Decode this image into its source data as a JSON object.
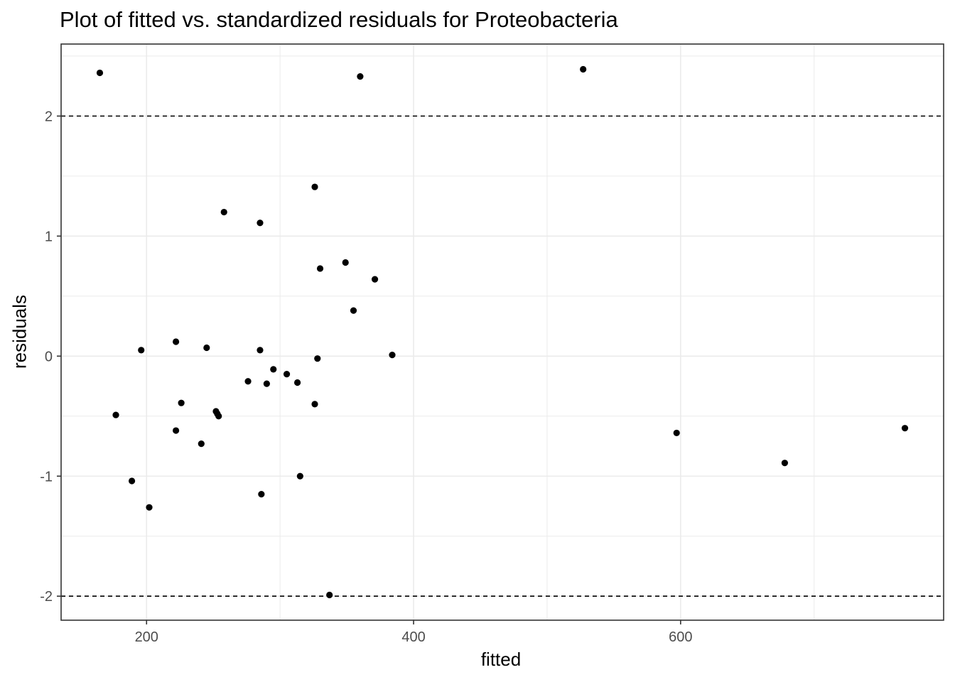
{
  "chart_data": {
    "type": "scatter",
    "title": "Plot of fitted vs. standardized residuals for Proteobacteria",
    "xlabel": "fitted",
    "ylabel": "residuals",
    "xlim": [
      136,
      797
    ],
    "ylim": [
      -2.2,
      2.6
    ],
    "x_ticks": [
      200,
      400,
      600
    ],
    "x_tick_labels": [
      "200",
      "400",
      "600"
    ],
    "y_ticks": [
      -2,
      -1,
      0,
      1,
      2
    ],
    "y_tick_labels": [
      "-2",
      "-1",
      "0",
      "1",
      "2"
    ],
    "grid": true,
    "reference_lines": [
      2,
      -2
    ],
    "points": [
      {
        "x": 165,
        "y": 2.36
      },
      {
        "x": 177,
        "y": -0.49
      },
      {
        "x": 189,
        "y": -1.04
      },
      {
        "x": 196,
        "y": 0.05
      },
      {
        "x": 202,
        "y": -1.26
      },
      {
        "x": 222,
        "y": 0.12
      },
      {
        "x": 222,
        "y": -0.62
      },
      {
        "x": 226,
        "y": -0.39
      },
      {
        "x": 241,
        "y": -0.73
      },
      {
        "x": 245,
        "y": 0.07
      },
      {
        "x": 252,
        "y": -0.46
      },
      {
        "x": 253,
        "y": -0.48
      },
      {
        "x": 254,
        "y": -0.5
      },
      {
        "x": 258,
        "y": 1.2
      },
      {
        "x": 276,
        "y": -0.21
      },
      {
        "x": 285,
        "y": 1.11
      },
      {
        "x": 285,
        "y": 0.05
      },
      {
        "x": 286,
        "y": -1.15
      },
      {
        "x": 290,
        "y": -0.23
      },
      {
        "x": 295,
        "y": -0.11
      },
      {
        "x": 305,
        "y": -0.15
      },
      {
        "x": 313,
        "y": -0.22
      },
      {
        "x": 315,
        "y": -1.0
      },
      {
        "x": 326,
        "y": 1.41
      },
      {
        "x": 326,
        "y": -0.4
      },
      {
        "x": 328,
        "y": -0.02
      },
      {
        "x": 330,
        "y": 0.73
      },
      {
        "x": 337,
        "y": -1.99
      },
      {
        "x": 349,
        "y": 0.78
      },
      {
        "x": 355,
        "y": 0.38
      },
      {
        "x": 360,
        "y": 2.33
      },
      {
        "x": 371,
        "y": 0.64
      },
      {
        "x": 384,
        "y": 0.01
      },
      {
        "x": 527,
        "y": 2.39
      },
      {
        "x": 597,
        "y": -0.64
      },
      {
        "x": 678,
        "y": -0.89
      },
      {
        "x": 768,
        "y": -0.6
      }
    ],
    "colors": {
      "point": "#000000",
      "grid": "#ebebeb",
      "panel_border": "#333333",
      "ref_line": "#000000"
    }
  }
}
